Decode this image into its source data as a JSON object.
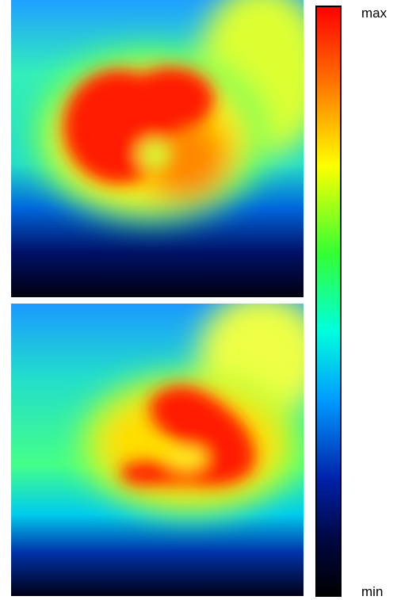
{
  "colorbar": {
    "max_label": "max",
    "min_label": "min"
  }
}
